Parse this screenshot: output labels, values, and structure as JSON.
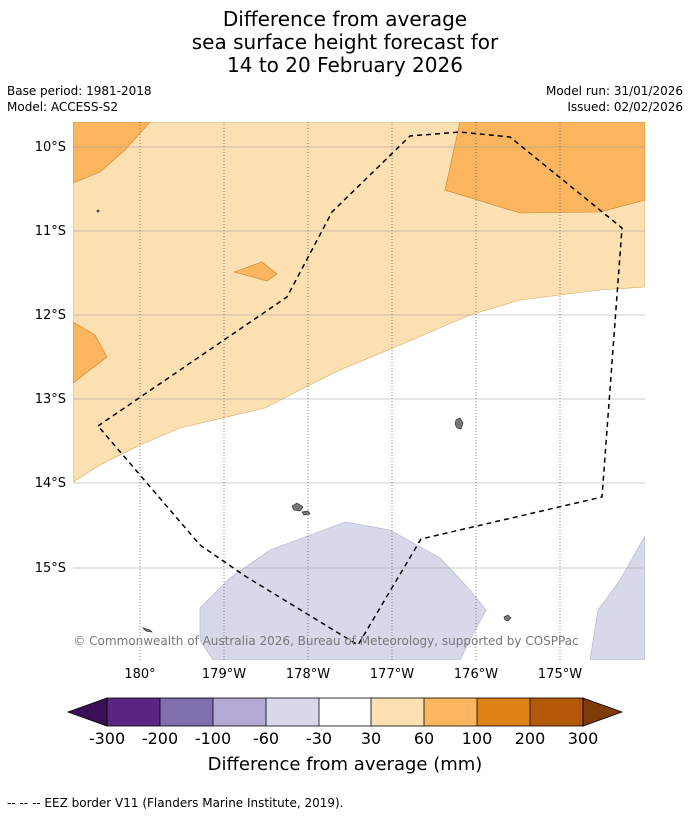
{
  "title_lines": [
    "Difference from average",
    "sea surface height forecast for",
    "14 to 20 February 2026"
  ],
  "base_period": "Base period: 1981-2018",
  "model": "Model: ACCESS-S2",
  "model_run": "Model run: 31/01/2026",
  "issued": "Issued: 02/02/2026",
  "lat_labels": [
    "10°S",
    "11°S",
    "12°S",
    "13°S",
    "14°S",
    "15°S"
  ],
  "lon_labels": [
    "180°",
    "179°W",
    "178°W",
    "177°W",
    "176°W",
    "175°W"
  ],
  "copyright": "© Commonwealth of Australia 2026, Bureau of Meteorology, supported by COSPPac",
  "colorbar": {
    "ticks": [
      "-300",
      "-200",
      "-100",
      "-60",
      "-30",
      "30",
      "60",
      "100",
      "200",
      "300"
    ],
    "colors": [
      "#5c2585",
      "#7f6fae",
      "#b2aad2",
      "#d7d8ea",
      "#ffffff",
      "#fde0b2",
      "#fbb55f",
      "#e08214",
      "#b25808"
    ],
    "under_color": "#3a0f55",
    "over_color": "#7f3b08",
    "label": "Difference from average (mm)"
  },
  "legend_note": "-- -- -- EEZ border V11 (Flanders Marine Institute, 2019)."
}
